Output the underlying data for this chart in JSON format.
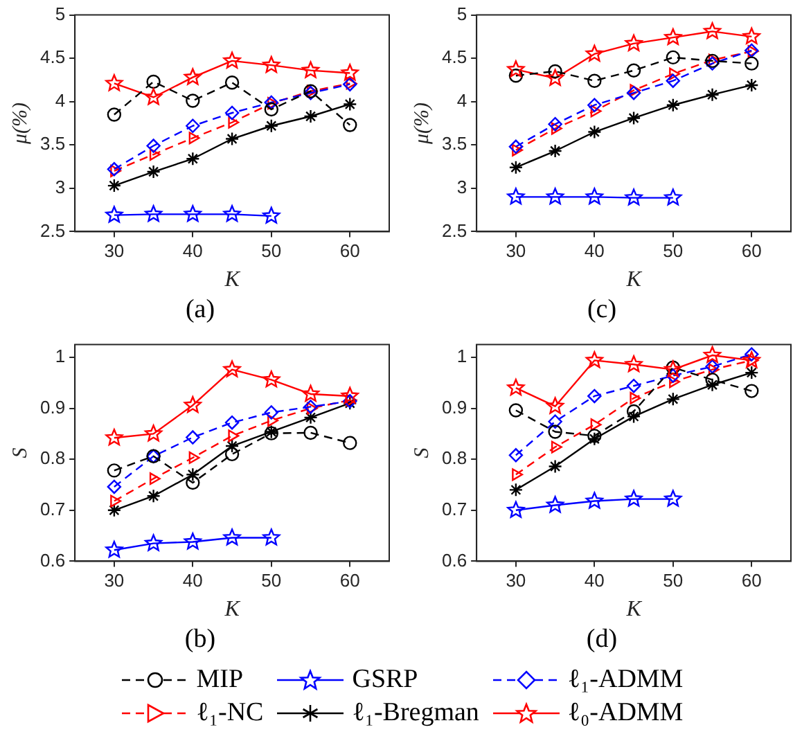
{
  "chart_data": [
    {
      "type": "line",
      "title": "(a)",
      "xlabel": "K",
      "ylabel": "μ(%)",
      "xlim": [
        25,
        65
      ],
      "xticks": [
        30,
        40,
        50,
        60
      ],
      "ylim": [
        2.5,
        5
      ],
      "yticks": [
        2.5,
        3,
        3.5,
        4,
        4.5,
        5
      ],
      "grid": false,
      "legend": "bottom",
      "x": [
        30,
        35,
        40,
        45,
        50,
        55,
        60
      ],
      "series": [
        {
          "name": "MIP",
          "color": "#000000",
          "marker": "circle",
          "line_style": "dashed",
          "values": [
            3.85,
            4.23,
            4.01,
            4.22,
            3.91,
            4.12,
            3.73
          ]
        },
        {
          "name": "GSRP",
          "color": "#0000ff",
          "marker": "star",
          "line_style": "solid",
          "values": [
            2.69,
            2.7,
            2.7,
            2.7,
            2.68,
            null,
            null
          ]
        },
        {
          "name": "ℓ₁-ADMM",
          "color": "#0000ff",
          "marker": "diamond",
          "line_style": "dashed",
          "values": [
            3.22,
            3.49,
            3.72,
            3.87,
            3.99,
            4.1,
            4.2
          ]
        },
        {
          "name": "ℓ₁-NC",
          "color": "#ff0000",
          "marker": "triangle",
          "line_style": "dashed",
          "values": [
            3.2,
            3.39,
            3.58,
            3.76,
            3.98,
            4.12,
            4.21
          ]
        },
        {
          "name": "ℓ₁-Bregman",
          "color": "#000000",
          "marker": "cross",
          "line_style": "solid",
          "values": [
            3.03,
            3.19,
            3.34,
            3.57,
            3.72,
            3.83,
            3.97
          ]
        },
        {
          "name": "ℓ₀-ADMM",
          "color": "#ff0000",
          "marker": "star",
          "line_style": "solid",
          "values": [
            4.21,
            4.05,
            4.28,
            4.47,
            4.42,
            4.36,
            4.33
          ]
        }
      ]
    },
    {
      "type": "line",
      "title": "(c)",
      "xlabel": "K",
      "ylabel": "μ(%)",
      "xlim": [
        25,
        65
      ],
      "xticks": [
        30,
        40,
        50,
        60
      ],
      "ylim": [
        2.5,
        5
      ],
      "yticks": [
        2.5,
        3,
        3.5,
        4,
        4.5,
        5
      ],
      "grid": false,
      "legend": "bottom",
      "x": [
        30,
        35,
        40,
        45,
        50,
        55,
        60
      ],
      "series": [
        {
          "name": "MIP",
          "color": "#000000",
          "marker": "circle",
          "line_style": "dashed",
          "values": [
            4.3,
            4.35,
            4.24,
            4.36,
            4.51,
            4.47,
            4.44
          ]
        },
        {
          "name": "GSRP",
          "color": "#0000ff",
          "marker": "star",
          "line_style": "solid",
          "values": [
            2.9,
            2.9,
            2.9,
            2.89,
            2.89,
            null,
            null
          ]
        },
        {
          "name": "ℓ₁-ADMM",
          "color": "#0000ff",
          "marker": "diamond",
          "line_style": "dashed",
          "values": [
            3.48,
            3.74,
            3.96,
            4.1,
            4.24,
            4.44,
            4.59
          ]
        },
        {
          "name": "ℓ₁-NC",
          "color": "#ff0000",
          "marker": "triangle",
          "line_style": "dashed",
          "values": [
            3.44,
            3.69,
            3.89,
            4.13,
            4.32,
            4.48,
            4.58
          ]
        },
        {
          "name": "ℓ₁-Bregman",
          "color": "#000000",
          "marker": "cross",
          "line_style": "solid",
          "values": [
            3.24,
            3.43,
            3.65,
            3.81,
            3.96,
            4.08,
            4.19
          ]
        },
        {
          "name": "ℓ₀-ADMM",
          "color": "#ff0000",
          "marker": "star",
          "line_style": "solid",
          "values": [
            4.37,
            4.27,
            4.55,
            4.67,
            4.74,
            4.81,
            4.75
          ]
        }
      ]
    },
    {
      "type": "line",
      "title": "(b)",
      "xlabel": "K",
      "ylabel": "S",
      "xlim": [
        25,
        65
      ],
      "xticks": [
        30,
        40,
        50,
        60
      ],
      "ylim": [
        0.6,
        1.025
      ],
      "yticks": [
        0.6,
        0.7,
        0.8,
        0.9,
        1
      ],
      "grid": false,
      "legend": "bottom",
      "x": [
        30,
        35,
        40,
        45,
        50,
        55,
        60
      ],
      "series": [
        {
          "name": "MIP",
          "color": "#000000",
          "marker": "circle",
          "line_style": "dashed",
          "values": [
            0.778,
            0.806,
            0.754,
            0.81,
            0.851,
            0.852,
            0.832
          ]
        },
        {
          "name": "GSRP",
          "color": "#0000ff",
          "marker": "star",
          "line_style": "solid",
          "values": [
            0.622,
            0.635,
            0.638,
            0.646,
            0.646,
            null,
            null
          ]
        },
        {
          "name": "ℓ₁-ADMM",
          "color": "#0000ff",
          "marker": "diamond",
          "line_style": "dashed",
          "values": [
            0.746,
            0.806,
            0.843,
            0.872,
            0.892,
            0.903,
            0.914
          ]
        },
        {
          "name": "ℓ₁-NC",
          "color": "#ff0000",
          "marker": "triangle",
          "line_style": "dashed",
          "values": [
            0.718,
            0.762,
            0.803,
            0.846,
            0.876,
            0.9,
            0.916
          ]
        },
        {
          "name": "ℓ₁-Bregman",
          "color": "#000000",
          "marker": "cross",
          "line_style": "solid",
          "values": [
            0.7,
            0.728,
            0.77,
            0.826,
            0.854,
            0.882,
            0.91
          ]
        },
        {
          "name": "ℓ₀-ADMM",
          "color": "#ff0000",
          "marker": "star",
          "line_style": "solid",
          "values": [
            0.842,
            0.85,
            0.906,
            0.976,
            0.956,
            0.928,
            0.924
          ]
        }
      ]
    },
    {
      "type": "line",
      "title": "(d)",
      "xlabel": "K",
      "ylabel": "S",
      "xlim": [
        25,
        65
      ],
      "xticks": [
        30,
        40,
        50,
        60
      ],
      "ylim": [
        0.6,
        1.025
      ],
      "yticks": [
        0.6,
        0.7,
        0.8,
        0.9,
        1
      ],
      "grid": false,
      "legend": "bottom",
      "x": [
        30,
        35,
        40,
        45,
        50,
        55,
        60
      ],
      "series": [
        {
          "name": "MIP",
          "color": "#000000",
          "marker": "circle",
          "line_style": "dashed",
          "values": [
            0.896,
            0.854,
            0.846,
            0.894,
            0.98,
            0.956,
            0.934
          ]
        },
        {
          "name": "GSRP",
          "color": "#0000ff",
          "marker": "star",
          "line_style": "solid",
          "values": [
            0.7,
            0.71,
            0.718,
            0.722,
            0.722,
            null,
            null
          ]
        },
        {
          "name": "ℓ₁-ADMM",
          "color": "#0000ff",
          "marker": "diamond",
          "line_style": "dashed",
          "values": [
            0.808,
            0.874,
            0.924,
            0.944,
            0.964,
            0.982,
            1.006
          ]
        },
        {
          "name": "ℓ₁-NC",
          "color": "#ff0000",
          "marker": "triangle",
          "line_style": "dashed",
          "values": [
            0.77,
            0.824,
            0.868,
            0.92,
            0.952,
            0.976,
            0.994
          ]
        },
        {
          "name": "ℓ₁-Bregman",
          "color": "#000000",
          "marker": "cross",
          "line_style": "solid",
          "values": [
            0.74,
            0.786,
            0.84,
            0.884,
            0.918,
            0.946,
            0.97
          ]
        },
        {
          "name": "ℓ₀-ADMM",
          "color": "#ff0000",
          "marker": "star",
          "line_style": "solid",
          "values": [
            0.94,
            0.904,
            0.994,
            0.986,
            0.976,
            1.004,
            0.994
          ]
        }
      ]
    }
  ]
}
